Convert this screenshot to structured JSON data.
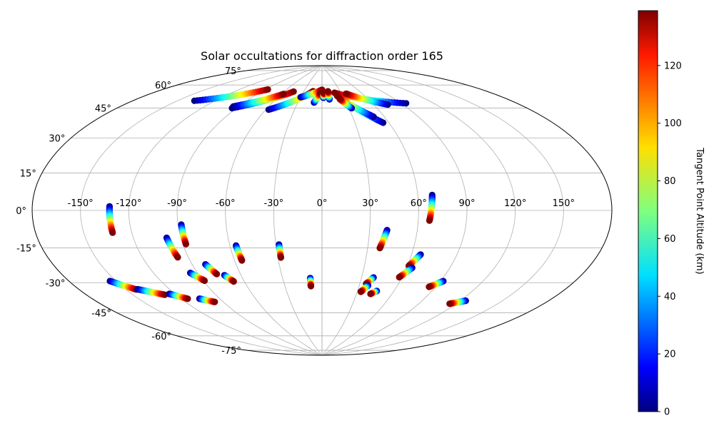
{
  "chart_data": {
    "type": "scatter",
    "projection": "Aitoff/Hammer style all-sky map",
    "title": "Solar occultations for diffraction order 165",
    "xlabel": "",
    "ylabel": "",
    "lon_ticks": [
      -150,
      -120,
      -90,
      -60,
      -30,
      0,
      30,
      60,
      90,
      120,
      150
    ],
    "lon_tick_labels": [
      "-150°",
      "-120°",
      "-90°",
      "-60°",
      "-30°",
      "0°",
      "30°",
      "60°",
      "90°",
      "120°",
      "150°"
    ],
    "lat_ticks": [
      75,
      60,
      45,
      30,
      15,
      0,
      -15,
      -30,
      -45,
      -60,
      -75
    ],
    "lat_tick_labels": [
      "75°",
      "60°",
      "45°",
      "30°",
      "15°",
      "0°",
      "-15°",
      "-30°",
      "-45°",
      "-60°",
      "-75°"
    ],
    "grid": true,
    "colormap": "jet",
    "colorbar": {
      "label": "Tangent Point Altitude (km)",
      "range": [
        0,
        139
      ],
      "ticks": [
        0,
        20,
        40,
        60,
        80,
        100,
        120
      ],
      "tick_labels": [
        "0",
        "20",
        "40",
        "60",
        "80",
        "100",
        "120"
      ]
    },
    "tracks": [
      {
        "lon0": -132,
        "lat0": 2,
        "lon1": -132,
        "lat1": -11
      },
      {
        "lon0": -99,
        "lat0": -15,
        "lon1": -97,
        "lat1": -26
      },
      {
        "lon0": -88,
        "lat0": -8,
        "lon1": -88,
        "lat1": -19
      },
      {
        "lon0": -56,
        "lat0": -21,
        "lon1": -55,
        "lat1": -30
      },
      {
        "lon0": -28,
        "lat0": -21,
        "lon1": -28,
        "lat1": -29
      },
      {
        "lon0": -9,
        "lat0": -42,
        "lon1": -9,
        "lat1": -47
      },
      {
        "lon0": 41,
        "lat0": -12,
        "lon1": 38,
        "lat1": -23
      },
      {
        "lon0": 69,
        "lat0": 9,
        "lon1": 67,
        "lat1": -6
      },
      {
        "lon0": 66,
        "lat0": -26,
        "lon1": 61,
        "lat1": -33
      },
      {
        "lon0": 64,
        "lat0": -34,
        "lon1": 58,
        "lat1": -40
      },
      {
        "lon0": 92,
        "lat0": -40,
        "lon1": 85,
        "lat1": -44
      },
      {
        "lon0": 124,
        "lat0": -48,
        "lon1": 115,
        "lat1": -51
      },
      {
        "lon0": 39,
        "lat0": -41,
        "lon1": 35,
        "lat1": -45
      },
      {
        "lon0": 37,
        "lat0": -46,
        "lon1": 33,
        "lat1": -50
      },
      {
        "lon0": 46,
        "lat0": -49,
        "lon1": 42,
        "lat1": -51
      },
      {
        "lon0": -154,
        "lat0": -33,
        "lon1": -143,
        "lat1": -39
      },
      {
        "lon0": -142,
        "lat0": -39,
        "lon1": -128,
        "lat1": -44
      },
      {
        "lon0": -124,
        "lat0": -44,
        "lon1": -115,
        "lat1": -48
      },
      {
        "lon0": -95,
        "lat0": -35,
        "lon1": -89,
        "lat1": -40
      },
      {
        "lon0": -81,
        "lat0": -31,
        "lon1": -77,
        "lat1": -37
      },
      {
        "lon0": -72,
        "lat0": -38,
        "lon1": -68,
        "lat1": -42
      },
      {
        "lon0": -106,
        "lat0": -49,
        "lon1": -97,
        "lat1": -52
      },
      {
        "lon0": -137,
        "lat0": 58,
        "lon1": -87,
        "lat1": 72
      },
      {
        "lon0": -94,
        "lat0": 59,
        "lon1": -46,
        "lat1": 73
      },
      {
        "lon0": -95,
        "lat0": 60,
        "lon1": -57,
        "lat1": 71
      },
      {
        "lon0": -57,
        "lat0": 61,
        "lon1": -15,
        "lat1": 74
      },
      {
        "lon0": -30,
        "lat0": 70,
        "lon1": 0,
        "lat1": 75
      },
      {
        "lon0": -10,
        "lat0": 67,
        "lon1": -3,
        "lat1": 73
      },
      {
        "lon0": 2,
        "lat0": 70,
        "lon1": 3,
        "lat1": 73
      },
      {
        "lon0": 10,
        "lat0": 69,
        "lon1": 10,
        "lat1": 74
      },
      {
        "lon0": 95,
        "lat0": 62,
        "lon1": 20,
        "lat1": 73
      },
      {
        "lon0": 75,
        "lat0": 63,
        "lon1": 37,
        "lat1": 72
      },
      {
        "lon0": 55,
        "lat0": 53,
        "lon1": 23,
        "lat1": 71
      },
      {
        "lon0": 50,
        "lat0": 57,
        "lon1": 22,
        "lat1": 71
      },
      {
        "lon0": 33,
        "lat0": 63,
        "lon1": 24,
        "lat1": 69
      }
    ],
    "tracks_note": ""
  }
}
